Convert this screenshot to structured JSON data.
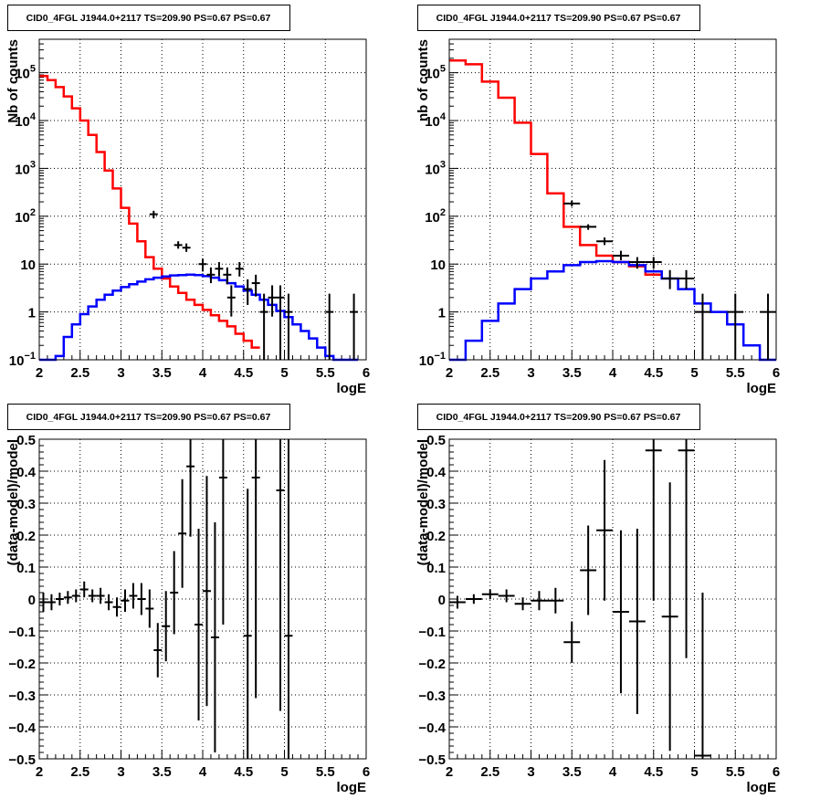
{
  "chart_data": [
    {
      "type": "histogram",
      "title": "CID0_4FGL J1944.0+2117 TS=209.90 PS=0.67 PS=0.67",
      "xlabel": "logE",
      "ylabel": "Nb of counts",
      "xlim": [
        2,
        6
      ],
      "ylim": [
        0.1,
        500000
      ],
      "yscale": "log",
      "grid": true,
      "x_ticks": [
        "2",
        "2.5",
        "3",
        "3.5",
        "4",
        "4.5",
        "5",
        "5.5",
        "6"
      ],
      "y_ticks": [
        {
          "v": 0.1,
          "mant": "10",
          "exp": "−1"
        },
        {
          "v": 1,
          "mant": "1",
          "exp": ""
        },
        {
          "v": 10,
          "mant": "10",
          "exp": ""
        },
        {
          "v": 100,
          "mant": "10",
          "exp": "2"
        },
        {
          "v": 1000,
          "mant": "10",
          "exp": "3"
        },
        {
          "v": 10000,
          "mant": "10",
          "exp": "4"
        },
        {
          "v": 100000,
          "mant": "10",
          "exp": "5"
        }
      ],
      "bin_edges": [
        2.0,
        2.1,
        2.2,
        2.3,
        2.4,
        2.5,
        2.6,
        2.7,
        2.8,
        2.9,
        3.0,
        3.1,
        3.2,
        3.3,
        3.4,
        3.5,
        3.6,
        3.7,
        3.8,
        3.9,
        4.0,
        4.1,
        4.2,
        4.3,
        4.4,
        4.5,
        4.6,
        4.7,
        4.8,
        4.9,
        5.0,
        5.1,
        5.2,
        5.3,
        5.4,
        5.5,
        5.6,
        5.7,
        5.8,
        5.9
      ],
      "series": [
        {
          "role": "total_model",
          "color": "#ff0000",
          "values": [
            85000,
            70000,
            50000,
            32000,
            18000,
            10000,
            5000,
            2200,
            900,
            380,
            150,
            70,
            30,
            14,
            8,
            5,
            3.4,
            2.5,
            1.8,
            1.4,
            1.1,
            0.85,
            0.65,
            0.5,
            0.35,
            0.25,
            0.18
          ]
        },
        {
          "role": "source_model",
          "color": "#0000ff",
          "values": [
            0.1,
            0.1,
            0.12,
            0.3,
            0.55,
            0.9,
            1.3,
            1.8,
            2.3,
            2.8,
            3.3,
            3.8,
            4.3,
            4.8,
            5.2,
            5.5,
            5.8,
            5.9,
            6.0,
            5.9,
            5.6,
            5.2,
            4.6,
            4.0,
            3.4,
            2.8,
            2.3,
            1.8,
            1.4,
            1.05,
            0.78,
            0.55,
            0.4,
            0.28,
            0.18,
            0.12,
            0.1,
            0.1,
            0.1
          ]
        },
        {
          "role": "data",
          "color": "#000000",
          "points": [
            {
              "x": 3.4,
              "y": 110,
              "lo": 90,
              "hi": 130
            },
            {
              "x": 3.7,
              "y": 25,
              "lo": 21,
              "hi": 30
            },
            {
              "x": 3.8,
              "y": 22,
              "lo": 18,
              "hi": 27
            },
            {
              "x": 4.0,
              "y": 10,
              "lo": 7,
              "hi": 13
            },
            {
              "x": 4.1,
              "y": 6,
              "lo": 4,
              "hi": 8.5
            },
            {
              "x": 4.2,
              "y": 8,
              "lo": 5.5,
              "hi": 11
            },
            {
              "x": 4.3,
              "y": 6,
              "lo": 3.8,
              "hi": 8.5
            },
            {
              "x": 4.35,
              "y": 2,
              "lo": 0.8,
              "hi": 3.6
            },
            {
              "x": 4.45,
              "y": 8,
              "lo": 5.5,
              "hi": 11
            },
            {
              "x": 4.55,
              "y": 3,
              "lo": 1.4,
              "hi": 4.8
            },
            {
              "x": 4.65,
              "y": 4,
              "lo": 2.1,
              "hi": 6.0
            },
            {
              "x": 4.75,
              "y": 1,
              "lo": 0.1,
              "hi": 2.4
            },
            {
              "x": 4.85,
              "y": 2,
              "lo": 0.8,
              "hi": 3.6
            },
            {
              "x": 4.95,
              "y": 2,
              "lo": 0.1,
              "hi": 3.6
            },
            {
              "x": 5.05,
              "y": 1,
              "lo": 0.1,
              "hi": 2.4
            },
            {
              "x": 5.55,
              "y": 1,
              "lo": 0.1,
              "hi": 2.4
            },
            {
              "x": 5.85,
              "y": 1,
              "lo": 0.1,
              "hi": 2.4
            }
          ]
        }
      ]
    },
    {
      "type": "histogram",
      "title": "CID0_4FGL J1944.0+2117 TS=209.90 PS=0.67 PS=0.67",
      "xlabel": "logE",
      "ylabel": "nb of counts",
      "xlim": [
        2,
        6
      ],
      "ylim": [
        0.1,
        500000
      ],
      "yscale": "log",
      "grid": true,
      "x_ticks": [
        "2",
        "2.5",
        "3",
        "3.5",
        "4",
        "4.5",
        "5",
        "5.5",
        "6"
      ],
      "y_ticks": [
        {
          "v": 0.1,
          "mant": "10",
          "exp": "−1"
        },
        {
          "v": 1,
          "mant": "1",
          "exp": ""
        },
        {
          "v": 10,
          "mant": "10",
          "exp": ""
        },
        {
          "v": 100,
          "mant": "10",
          "exp": "2"
        },
        {
          "v": 1000,
          "mant": "10",
          "exp": "3"
        },
        {
          "v": 10000,
          "mant": "10",
          "exp": "4"
        },
        {
          "v": 100000,
          "mant": "10",
          "exp": "5"
        }
      ],
      "bin_edges": [
        2.0,
        2.2,
        2.4,
        2.6,
        2.8,
        3.0,
        3.2,
        3.4,
        3.6,
        3.8,
        4.0,
        4.2,
        4.4,
        4.6,
        4.8,
        5.0,
        5.2,
        5.4,
        5.6,
        5.8,
        6.0
      ],
      "series": [
        {
          "role": "total_model",
          "color": "#ff0000",
          "values": [
            180000,
            150000,
            65000,
            30000,
            9000,
            2000,
            300,
            60,
            25,
            15,
            11,
            9,
            6
          ]
        },
        {
          "role": "source_model",
          "color": "#0000ff",
          "values": [
            0.1,
            0.25,
            0.65,
            1.5,
            3.0,
            5.0,
            7.0,
            9.5,
            11.0,
            11.5,
            11.0,
            9.5,
            7.0,
            5.0,
            3.0,
            1.5,
            1.0,
            0.55,
            0.2,
            0.1
          ]
        },
        {
          "role": "data",
          "color": "#000000",
          "points": [
            {
              "x": 3.5,
              "y": 185,
              "lo": 160,
              "hi": 210
            },
            {
              "x": 3.7,
              "y": 60,
              "lo": 52,
              "hi": 68
            },
            {
              "x": 3.9,
              "y": 30,
              "lo": 25,
              "hi": 36
            },
            {
              "x": 4.1,
              "y": 15,
              "lo": 12,
              "hi": 19
            },
            {
              "x": 4.3,
              "y": 11,
              "lo": 8,
              "hi": 14
            },
            {
              "x": 4.5,
              "y": 11,
              "lo": 8,
              "hi": 14
            },
            {
              "x": 4.7,
              "y": 5,
              "lo": 3,
              "hi": 7.5
            },
            {
              "x": 4.9,
              "y": 5,
              "lo": 3,
              "hi": 7.5
            },
            {
              "x": 5.1,
              "y": 1,
              "lo": 0.1,
              "hi": 2.4
            },
            {
              "x": 5.5,
              "y": 1,
              "lo": 0.1,
              "hi": 2.4
            },
            {
              "x": 5.9,
              "y": 1,
              "lo": 0.1,
              "hi": 2.4
            }
          ]
        }
      ]
    },
    {
      "type": "scatter",
      "title": "CID0_4FGL J1944.0+2117 TS=209.90 PS=0.67 PS=0.67",
      "xlabel": "logE",
      "ylabel": "(data-model)/model",
      "xlim": [
        2,
        6
      ],
      "ylim": [
        -0.5,
        0.5
      ],
      "yscale": "linear",
      "grid": true,
      "x_ticks": [
        "2",
        "2.5",
        "3",
        "3.5",
        "4",
        "4.5",
        "5",
        "5.5",
        "6"
      ],
      "y_ticks": [
        {
          "v": -0.5,
          "label": "−0.5"
        },
        {
          "v": -0.4,
          "label": "−0.4"
        },
        {
          "v": -0.3,
          "label": "−0.3"
        },
        {
          "v": -0.2,
          "label": "−0.2"
        },
        {
          "v": -0.1,
          "label": "−0.1"
        },
        {
          "v": 0,
          "label": "0"
        },
        {
          "v": 0.1,
          "label": "0.1"
        },
        {
          "v": 0.2,
          "label": "0.2"
        },
        {
          "v": 0.3,
          "label": "0.3"
        },
        {
          "v": 0.4,
          "label": "0.4"
        },
        {
          "v": 0.5,
          "label": "0.5"
        }
      ],
      "points": [
        {
          "x": 2.05,
          "y": -0.01,
          "e": 0.03,
          "w": 0.05
        },
        {
          "x": 2.15,
          "y": -0.01,
          "e": 0.025,
          "w": 0.05
        },
        {
          "x": 2.25,
          "y": 0.0,
          "e": 0.02,
          "w": 0.05
        },
        {
          "x": 2.35,
          "y": 0.005,
          "e": 0.02,
          "w": 0.05
        },
        {
          "x": 2.45,
          "y": 0.01,
          "e": 0.02,
          "w": 0.05
        },
        {
          "x": 2.55,
          "y": 0.03,
          "e": 0.025,
          "w": 0.05
        },
        {
          "x": 2.65,
          "y": 0.01,
          "e": 0.02,
          "w": 0.05
        },
        {
          "x": 2.75,
          "y": 0.01,
          "e": 0.025,
          "w": 0.05
        },
        {
          "x": 2.85,
          "y": -0.01,
          "e": 0.025,
          "w": 0.05
        },
        {
          "x": 2.95,
          "y": -0.025,
          "e": 0.03,
          "w": 0.05
        },
        {
          "x": 3.05,
          "y": -0.005,
          "e": 0.035,
          "w": 0.05
        },
        {
          "x": 3.15,
          "y": 0.01,
          "e": 0.04,
          "w": 0.05
        },
        {
          "x": 3.25,
          "y": 0.0,
          "e": 0.05,
          "w": 0.05
        },
        {
          "x": 3.35,
          "y": -0.03,
          "e": 0.06,
          "w": 0.05
        },
        {
          "x": 3.45,
          "y": -0.16,
          "e": 0.085,
          "w": 0.05
        },
        {
          "x": 3.55,
          "y": -0.085,
          "e": 0.11,
          "w": 0.05
        },
        {
          "x": 3.65,
          "y": 0.02,
          "e": 0.13,
          "w": 0.05
        },
        {
          "x": 3.75,
          "y": 0.205,
          "e": 0.17,
          "w": 0.05
        },
        {
          "x": 3.85,
          "y": 0.415,
          "e": 0.22,
          "w": 0.05
        },
        {
          "x": 3.95,
          "y": -0.08,
          "e": 0.3,
          "w": 0.05
        },
        {
          "x": 4.05,
          "y": 0.025,
          "e": 0.36,
          "w": 0.05
        },
        {
          "x": 4.15,
          "y": -0.12,
          "e": 0.36,
          "w": 0.05
        },
        {
          "x": 4.25,
          "y": 0.38,
          "e": 0.46,
          "w": 0.05
        },
        {
          "x": 4.55,
          "y": -0.115,
          "e": 0.46,
          "w": 0.05
        },
        {
          "x": 4.65,
          "y": 0.38,
          "e": 0.69,
          "w": 0.05
        },
        {
          "x": 4.95,
          "y": 0.34,
          "e": 0.69,
          "w": 0.05
        },
        {
          "x": 5.05,
          "y": -0.115,
          "e": 0.9,
          "w": 0.05
        }
      ]
    },
    {
      "type": "scatter",
      "title": "CID0_4FGL J1944.0+2117 TS=209.90 PS=0.67 PS=0.67",
      "xlabel": "logE",
      "ylabel": "(data-model)/model",
      "xlim": [
        2,
        6
      ],
      "ylim": [
        -0.5,
        0.5
      ],
      "yscale": "linear",
      "grid": true,
      "x_ticks": [
        "2",
        "2.5",
        "3",
        "3.5",
        "4",
        "4.5",
        "5",
        "5.5",
        "6"
      ],
      "y_ticks": [
        {
          "v": -0.5,
          "label": "−0.5"
        },
        {
          "v": -0.4,
          "label": "−0.4"
        },
        {
          "v": -0.3,
          "label": "−0.3"
        },
        {
          "v": -0.2,
          "label": "−0.2"
        },
        {
          "v": -0.1,
          "label": "−0.1"
        },
        {
          "v": 0,
          "label": "0"
        },
        {
          "v": 0.1,
          "label": "0.1"
        },
        {
          "v": 0.2,
          "label": "0.2"
        },
        {
          "v": 0.3,
          "label": "0.3"
        },
        {
          "v": 0.4,
          "label": "0.4"
        },
        {
          "v": 0.5,
          "label": "0.5"
        }
      ],
      "points": [
        {
          "x": 2.1,
          "y": -0.01,
          "e": 0.02,
          "w": 0.1
        },
        {
          "x": 2.3,
          "y": 0.0,
          "e": 0.015,
          "w": 0.1
        },
        {
          "x": 2.5,
          "y": 0.015,
          "e": 0.015,
          "w": 0.1
        },
        {
          "x": 2.7,
          "y": 0.01,
          "e": 0.02,
          "w": 0.1
        },
        {
          "x": 2.9,
          "y": -0.015,
          "e": 0.02,
          "w": 0.1
        },
        {
          "x": 3.1,
          "y": -0.005,
          "e": 0.03,
          "w": 0.1
        },
        {
          "x": 3.3,
          "y": -0.005,
          "e": 0.04,
          "w": 0.1
        },
        {
          "x": 3.5,
          "y": -0.135,
          "e": 0.065,
          "w": 0.1
        },
        {
          "x": 3.7,
          "y": 0.09,
          "e": 0.14,
          "w": 0.1
        },
        {
          "x": 3.9,
          "y": 0.215,
          "e": 0.22,
          "w": 0.1
        },
        {
          "x": 4.1,
          "y": -0.04,
          "e": 0.255,
          "w": 0.1
        },
        {
          "x": 4.3,
          "y": -0.07,
          "e": 0.29,
          "w": 0.1
        },
        {
          "x": 4.5,
          "y": 0.465,
          "e": 0.47,
          "w": 0.1
        },
        {
          "x": 4.7,
          "y": -0.055,
          "e": 0.42,
          "w": 0.1
        },
        {
          "x": 4.9,
          "y": 0.465,
          "e": 0.65,
          "w": 0.1
        },
        {
          "x": 5.1,
          "y": -0.49,
          "e": 0.51,
          "w": 0.1
        }
      ]
    }
  ]
}
